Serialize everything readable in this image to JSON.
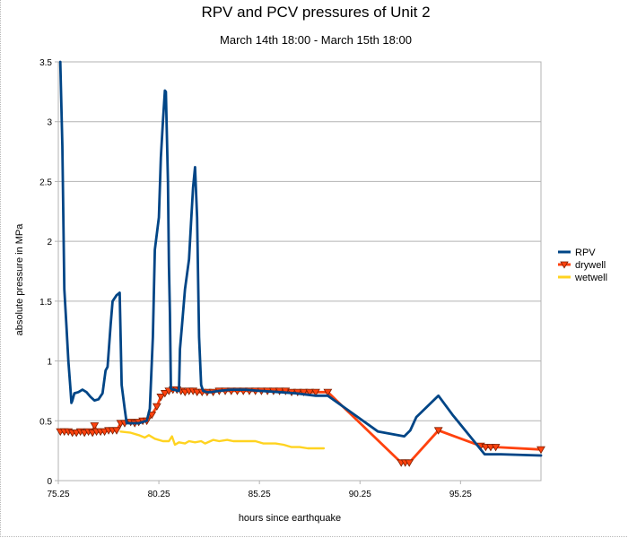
{
  "chart_data": {
    "type": "line",
    "title": "RPV and PCV pressures of Unit 2",
    "subtitle": "March 14th 18:00 - March 15th 18:00",
    "xlabel": "hours since earthquake",
    "ylabel": "absolute pressure in MPa",
    "xlim": [
      75.25,
      99.25
    ],
    "ylim": [
      0,
      3.5
    ],
    "x_ticks": [
      "75.25",
      "80.25",
      "85.25",
      "90.25",
      "95.25"
    ],
    "y_ticks": [
      "0",
      "0.5",
      "1",
      "1.5",
      "2",
      "2.5",
      "3",
      "3.5"
    ],
    "grid": "horizontal",
    "legend_position": "right",
    "colors": {
      "RPV": "#004586",
      "drywell": "#ff420e",
      "wetwell": "#ffd320"
    },
    "series": [
      {
        "name": "RPV",
        "marker": "none",
        "points": [
          [
            75.35,
            3.5
          ],
          [
            75.45,
            2.8
          ],
          [
            75.55,
            1.6
          ],
          [
            75.65,
            1.3
          ],
          [
            75.75,
            1.0
          ],
          [
            75.85,
            0.78
          ],
          [
            75.9,
            0.65
          ],
          [
            75.95,
            0.67
          ],
          [
            76.05,
            0.73
          ],
          [
            76.25,
            0.74
          ],
          [
            76.45,
            0.76
          ],
          [
            76.65,
            0.74
          ],
          [
            76.85,
            0.7
          ],
          [
            77.05,
            0.67
          ],
          [
            77.25,
            0.68
          ],
          [
            77.45,
            0.73
          ],
          [
            77.6,
            0.92
          ],
          [
            77.7,
            0.95
          ],
          [
            77.85,
            1.3
          ],
          [
            77.95,
            1.5
          ],
          [
            78.15,
            1.55
          ],
          [
            78.3,
            1.57
          ],
          [
            78.4,
            0.8
          ],
          [
            78.55,
            0.6
          ],
          [
            78.65,
            0.48
          ],
          [
            78.85,
            0.48
          ],
          [
            79.05,
            0.48
          ],
          [
            79.25,
            0.48
          ],
          [
            79.45,
            0.49
          ],
          [
            79.65,
            0.5
          ],
          [
            79.8,
            0.6
          ],
          [
            79.95,
            1.2
          ],
          [
            80.05,
            1.93
          ],
          [
            80.25,
            2.2
          ],
          [
            80.35,
            2.7
          ],
          [
            80.45,
            3.0
          ],
          [
            80.55,
            3.26
          ],
          [
            80.6,
            3.25
          ],
          [
            80.7,
            2.5
          ],
          [
            80.75,
            1.8
          ],
          [
            80.8,
            1.4
          ],
          [
            80.85,
            0.77
          ],
          [
            80.95,
            0.76
          ],
          [
            81.05,
            0.76
          ],
          [
            81.15,
            0.75
          ],
          [
            81.25,
            0.75
          ],
          [
            81.3,
            1.1
          ],
          [
            81.4,
            1.3
          ],
          [
            81.55,
            1.6
          ],
          [
            81.75,
            1.85
          ],
          [
            81.85,
            2.15
          ],
          [
            81.95,
            2.45
          ],
          [
            82.05,
            2.62
          ],
          [
            82.15,
            2.2
          ],
          [
            82.25,
            1.2
          ],
          [
            82.35,
            0.8
          ],
          [
            82.45,
            0.75
          ],
          [
            82.65,
            0.74
          ],
          [
            82.85,
            0.74
          ],
          [
            83.25,
            0.75
          ],
          [
            83.85,
            0.76
          ],
          [
            84.55,
            0.76
          ],
          [
            85.25,
            0.75
          ],
          [
            86.25,
            0.74
          ],
          [
            87.05,
            0.73
          ],
          [
            88.05,
            0.71
          ],
          [
            88.65,
            0.71
          ],
          [
            91.15,
            0.41
          ],
          [
            92.45,
            0.37
          ],
          [
            92.75,
            0.42
          ],
          [
            93.05,
            0.53
          ],
          [
            94.15,
            0.71
          ],
          [
            94.85,
            0.55
          ],
          [
            96.45,
            0.22
          ],
          [
            97.25,
            0.22
          ],
          [
            99.25,
            0.21
          ]
        ]
      },
      {
        "name": "drywell",
        "marker": "triangle-down",
        "points": [
          [
            75.35,
            0.41
          ],
          [
            75.55,
            0.41
          ],
          [
            75.75,
            0.41
          ],
          [
            75.95,
            0.4
          ],
          [
            76.15,
            0.4
          ],
          [
            76.35,
            0.41
          ],
          [
            76.55,
            0.4
          ],
          [
            76.75,
            0.41
          ],
          [
            76.95,
            0.4
          ],
          [
            77.05,
            0.46
          ],
          [
            77.15,
            0.41
          ],
          [
            77.35,
            0.41
          ],
          [
            77.55,
            0.41
          ],
          [
            77.75,
            0.42
          ],
          [
            77.95,
            0.42
          ],
          [
            78.15,
            0.42
          ],
          [
            78.35,
            0.48
          ],
          [
            78.55,
            0.48
          ],
          [
            78.85,
            0.49
          ],
          [
            79.05,
            0.48
          ],
          [
            79.25,
            0.49
          ],
          [
            79.45,
            0.5
          ],
          [
            79.65,
            0.5
          ],
          [
            79.9,
            0.55
          ],
          [
            80.15,
            0.62
          ],
          [
            80.35,
            0.7
          ],
          [
            80.55,
            0.73
          ],
          [
            80.75,
            0.75
          ],
          [
            80.95,
            0.76
          ],
          [
            81.15,
            0.76
          ],
          [
            81.35,
            0.75
          ],
          [
            81.55,
            0.74
          ],
          [
            81.75,
            0.75
          ],
          [
            81.95,
            0.75
          ],
          [
            82.15,
            0.74
          ],
          [
            82.4,
            0.74
          ],
          [
            82.65,
            0.74
          ],
          [
            82.95,
            0.74
          ],
          [
            83.25,
            0.75
          ],
          [
            83.55,
            0.75
          ],
          [
            83.85,
            0.75
          ],
          [
            84.15,
            0.75
          ],
          [
            84.45,
            0.75
          ],
          [
            84.75,
            0.75
          ],
          [
            85.05,
            0.75
          ],
          [
            85.35,
            0.75
          ],
          [
            85.65,
            0.75
          ],
          [
            85.95,
            0.75
          ],
          [
            86.25,
            0.75
          ],
          [
            86.55,
            0.75
          ],
          [
            86.85,
            0.74
          ],
          [
            87.15,
            0.74
          ],
          [
            87.45,
            0.74
          ],
          [
            87.75,
            0.74
          ],
          [
            88.05,
            0.74
          ],
          [
            88.65,
            0.74
          ],
          [
            92.3,
            0.15
          ],
          [
            92.5,
            0.15
          ],
          [
            92.7,
            0.15
          ],
          [
            94.15,
            0.42
          ],
          [
            96.25,
            0.29
          ],
          [
            96.5,
            0.28
          ],
          [
            96.75,
            0.28
          ],
          [
            97.0,
            0.28
          ],
          [
            99.25,
            0.26
          ]
        ]
      },
      {
        "name": "wetwell",
        "marker": "none",
        "points": [
          [
            78.35,
            0.41
          ],
          [
            78.85,
            0.4
          ],
          [
            79.25,
            0.38
          ],
          [
            79.55,
            0.36
          ],
          [
            79.75,
            0.38
          ],
          [
            80.05,
            0.35
          ],
          [
            80.45,
            0.33
          ],
          [
            80.75,
            0.33
          ],
          [
            80.9,
            0.37
          ],
          [
            81.05,
            0.3
          ],
          [
            81.25,
            0.32
          ],
          [
            81.55,
            0.31
          ],
          [
            81.75,
            0.33
          ],
          [
            82.05,
            0.32
          ],
          [
            82.35,
            0.33
          ],
          [
            82.55,
            0.31
          ],
          [
            82.95,
            0.34
          ],
          [
            83.25,
            0.33
          ],
          [
            83.65,
            0.34
          ],
          [
            83.95,
            0.33
          ],
          [
            84.55,
            0.33
          ],
          [
            85.05,
            0.33
          ],
          [
            85.45,
            0.31
          ],
          [
            86.05,
            0.31
          ],
          [
            86.45,
            0.3
          ],
          [
            86.85,
            0.28
          ],
          [
            87.25,
            0.28
          ],
          [
            87.65,
            0.27
          ],
          [
            88.05,
            0.27
          ],
          [
            88.45,
            0.27
          ]
        ]
      }
    ]
  }
}
